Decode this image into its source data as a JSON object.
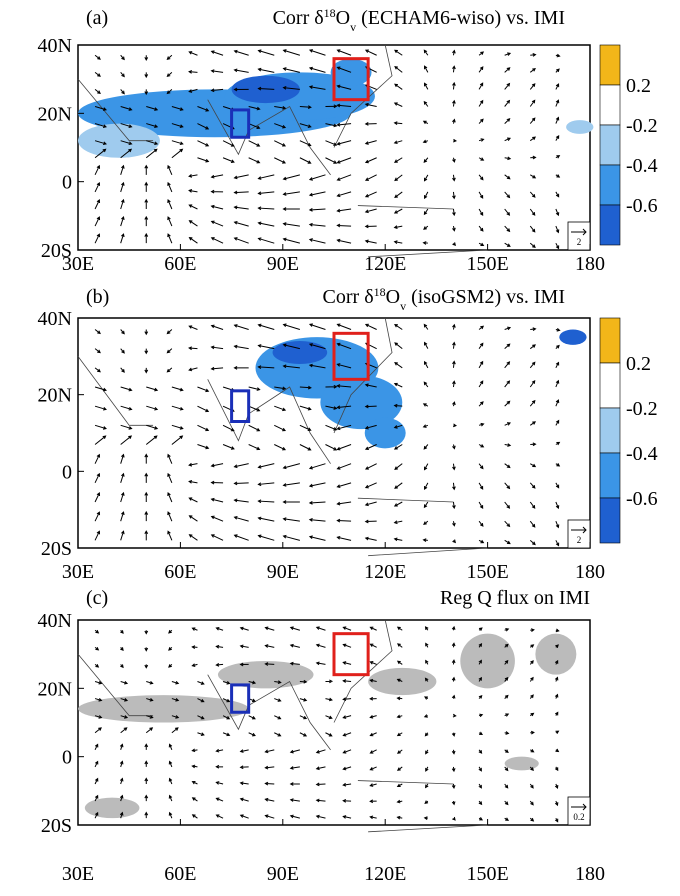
{
  "panels": [
    {
      "label": "(a)",
      "title": {
        "pre": "Corr  δ",
        "sup": "18",
        "mid": "O",
        "sub": "v",
        "post": " (ECHAM6-wiso) vs. IMI"
      },
      "colorbar": {
        "labels": [
          0.2,
          -0.2,
          -0.4,
          -0.6
        ],
        "colors": [
          "#f2b619",
          "#ffffff",
          "#9fcbee",
          "#3b95e6",
          "#1f60d0"
        ]
      },
      "ref_vector": "2"
    },
    {
      "label": "(b)",
      "title": {
        "pre": "Corr  δ",
        "sup": "18",
        "mid": "O",
        "sub": "v",
        "post": " (isoGSM2) vs. IMI"
      },
      "colorbar": {
        "labels": [
          0.2,
          -0.2,
          -0.4,
          -0.6
        ],
        "colors": [
          "#f2b619",
          "#ffffff",
          "#9fcbee",
          "#3b95e6",
          "#1f60d0"
        ]
      },
      "ref_vector": "2"
    },
    {
      "label": "(c)",
      "title": {
        "post": "Reg Q flux on IMI"
      },
      "ref_vector": "0.2"
    }
  ],
  "x_axis": [
    "30E",
    "60E",
    "90E",
    "120E",
    "150E",
    "180"
  ],
  "y_axis": [
    "40N",
    "20N",
    "0",
    "20S"
  ]
}
